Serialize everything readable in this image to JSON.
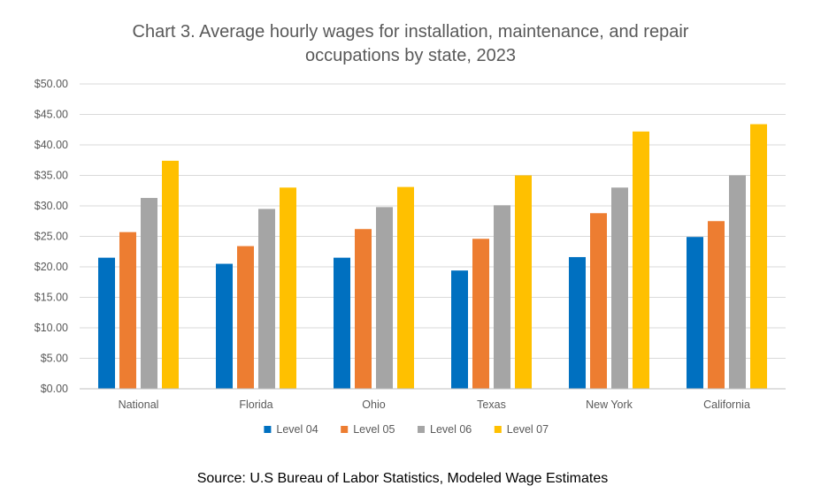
{
  "chart_data": {
    "type": "bar",
    "title": "Chart 3. Average hourly wages for installation, maintenance, and repair occupations by state, 2023",
    "title_lines": [
      "Chart 3. Average hourly wages for installation, maintenance, and repair",
      "occupations by state, 2023"
    ],
    "categories": [
      "National",
      "Florida",
      "Ohio",
      "Texas",
      "New York",
      "California"
    ],
    "series": [
      {
        "name": "Level 04",
        "color": "#0070c0",
        "values": [
          21.5,
          20.5,
          21.5,
          19.4,
          21.6,
          24.9
        ]
      },
      {
        "name": "Level 05",
        "color": "#ed7d31",
        "values": [
          25.7,
          23.4,
          26.2,
          24.6,
          28.8,
          27.5
        ]
      },
      {
        "name": "Level 06",
        "color": "#a5a5a5",
        "values": [
          31.3,
          29.5,
          29.8,
          30.1,
          33.0,
          35.0
        ]
      },
      {
        "name": "Level 07",
        "color": "#ffc000",
        "values": [
          37.4,
          33.0,
          33.1,
          35.0,
          42.2,
          43.4
        ]
      }
    ],
    "y_ticks": [
      "$0.00",
      "$5.00",
      "$10.00",
      "$15.00",
      "$20.00",
      "$25.00",
      "$30.00",
      "$35.00",
      "$40.00",
      "$45.00",
      "$50.00"
    ],
    "ylim": [
      0,
      50
    ],
    "xlabel": "",
    "ylabel": "",
    "grid": true,
    "legend_placement": "bottom",
    "source": "Source: U.S Bureau of Labor Statistics, Modeled Wage Estimates"
  }
}
